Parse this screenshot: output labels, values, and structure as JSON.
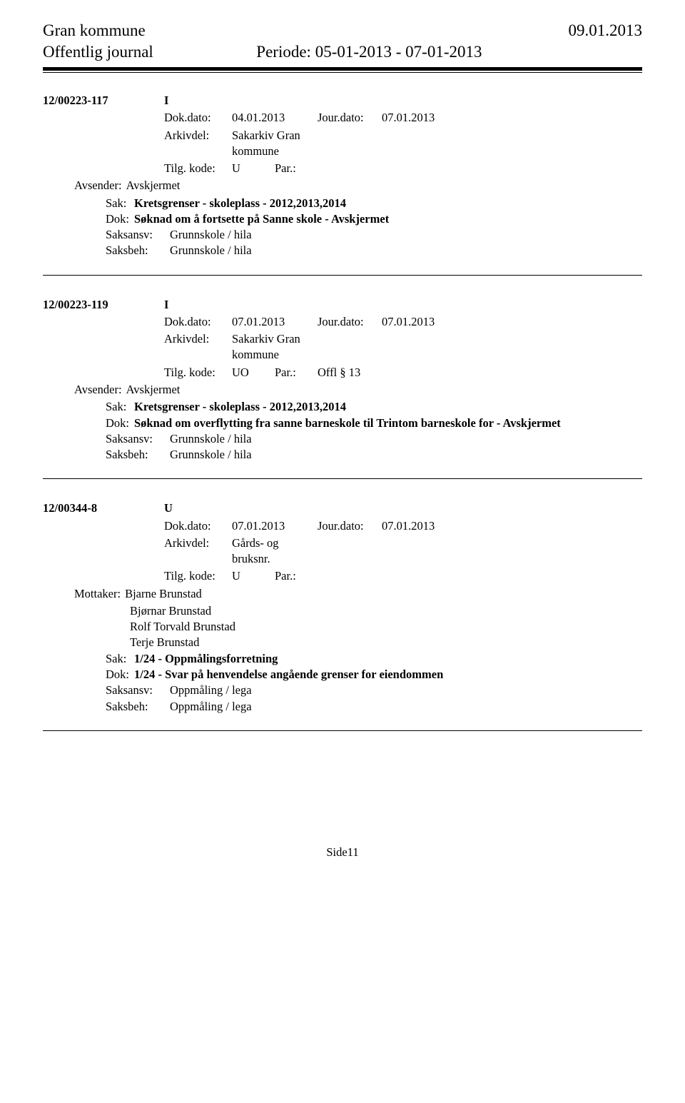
{
  "header": {
    "org": "Gran kommune",
    "date": "09.01.2013",
    "subtitle": "Offentlig journal",
    "period": "Periode: 05-01-2013 - 07-01-2013"
  },
  "labels": {
    "dokdato": "Dok.dato:",
    "jourdato": "Jour.dato:",
    "arkivdel": "Arkivdel:",
    "tilgkode": "Tilg. kode:",
    "par": "Par.:",
    "avsender": "Avsender:",
    "mottaker": "Mottaker:",
    "sak": "Sak:",
    "dok": "Dok:",
    "saksansv": "Saksansv:",
    "saksbeh": "Saksbeh:"
  },
  "records": [
    {
      "caseno": "12/00223-117",
      "dtype": "I",
      "dokdato": "04.01.2013",
      "jourdato": "07.01.2013",
      "arkivdel": "Sakarkiv Gran\nkommune",
      "tilg": "U",
      "par_extra": "",
      "party_label": "Avsender:",
      "parties": [
        "Avskjermet"
      ],
      "sak": "Kretsgrenser - skoleplass - 2012,2013,2014",
      "dokline": "Søknad om å fortsette på Sanne skole - Avskjermet",
      "saksansv": "Grunnskole / hila",
      "saksbeh": "Grunnskole / hila"
    },
    {
      "caseno": "12/00223-119",
      "dtype": "I",
      "dokdato": "07.01.2013",
      "jourdato": "07.01.2013",
      "arkivdel": "Sakarkiv Gran\nkommune",
      "tilg": "UO",
      "par_extra": "Offl § 13",
      "party_label": "Avsender:",
      "parties": [
        "Avskjermet"
      ],
      "sak": "Kretsgrenser - skoleplass - 2012,2013,2014",
      "dokline": "Søknad om overflytting fra sanne barneskole til Trintom barneskole for - Avskjermet",
      "saksansv": "Grunnskole / hila",
      "saksbeh": "Grunnskole / hila"
    },
    {
      "caseno": "12/00344-8",
      "dtype": "U",
      "dokdato": "07.01.2013",
      "jourdato": "07.01.2013",
      "arkivdel": "Gårds- og\nbruksnr.",
      "tilg": "U",
      "par_extra": "",
      "party_label": "Mottaker:",
      "parties": [
        "Bjarne   Brunstad",
        "Bjørnar Brunstad",
        "Rolf Torvald Brunstad",
        "Terje Brunstad"
      ],
      "sak": "1/24 - Oppmålingsforretning",
      "dokline": "1/24 - Svar på henvendelse angående grenser for eiendommen",
      "saksansv": "Oppmåling / lega",
      "saksbeh": "Oppmåling / lega"
    }
  ],
  "footer": "Side11"
}
